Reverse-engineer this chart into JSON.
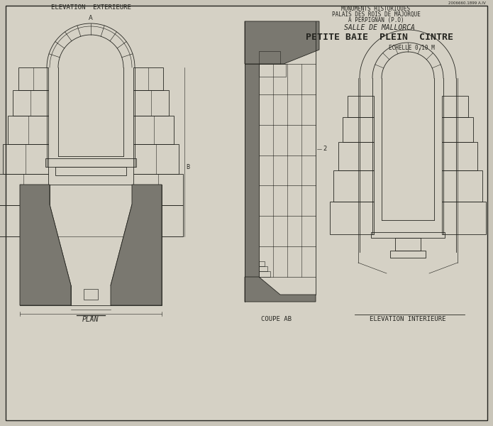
{
  "bg_color": "#c9c5b9",
  "paper_color": "#d5d1c5",
  "line_color": "#252520",
  "fill_dark": "#7a7870",
  "fill_medium": "#9a9890",
  "title1": "MONUMENTS HISTORIQUES",
  "title2": "PALAIS DES ROIS DE MAJORQUE",
  "title3": "A PERPIGNAN (P.O)",
  "title4": "SALLE DE MALLORCA",
  "title5": "PETITE BAIE  PLEIN  CINTRE",
  "scale": "ECHELLE 0,10 M",
  "label_ext": "ELEVATION  EXTERIEURE",
  "label_coupe": "COUPE AB",
  "label_int": "ELEVATION INTERIEURE",
  "label_plan": "PLAN",
  "ref": "2006660.1899 A.IV"
}
